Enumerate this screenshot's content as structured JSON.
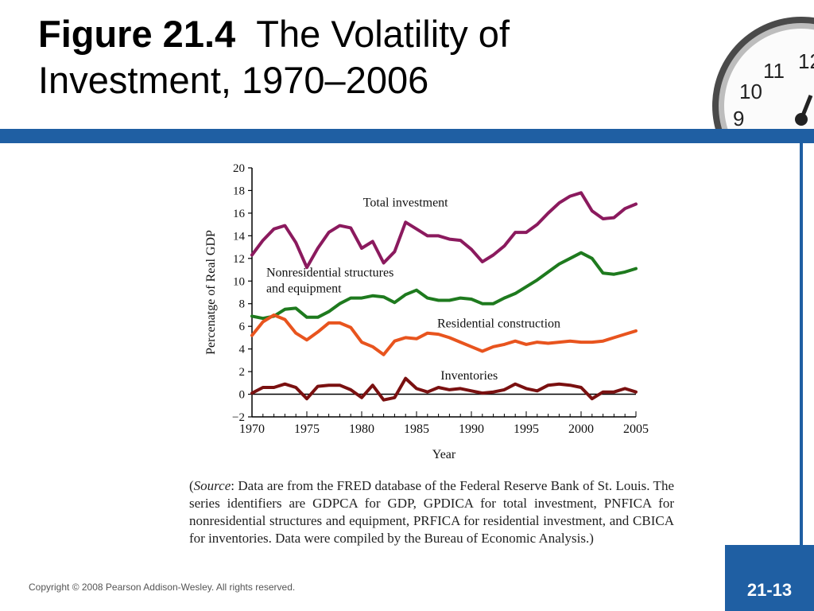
{
  "title": {
    "bold": "Figure 21.4",
    "regular": "The Volatility of Investment, 1970–2006"
  },
  "source": {
    "open": "(",
    "label": "Source",
    "text": ": Data are from the FRED database of the Federal Reserve Bank of St. Louis. The series identifiers are GDPCA for GDP, GPDICA for total invest­ment, PNFICA for nonresidential structures and equipment, PRFICA for res­idential investment, and CBICA for inventories. Data were compiled by the Bureau of Economic Analysis.)"
  },
  "copyright": "Copyright © 2008 Pearson Addison-Wesley. All rights reserved.",
  "page_number": "21-13",
  "clock_numbers": [
    "12",
    "11",
    "10",
    "9"
  ],
  "colors": {
    "band": "#1f5fa3",
    "total": "#8b1a5e",
    "nonres": "#1e7a1e",
    "residential": "#e8541e",
    "inventories": "#7a1010"
  },
  "chart_data": {
    "type": "line",
    "xlabel": "Year",
    "ylabel": "Percenatge of Real GDP",
    "xlim": [
      1970,
      2005
    ],
    "ylim": [
      -2,
      20
    ],
    "x_ticks": [
      "1970",
      "1975",
      "1980",
      "1985",
      "1990",
      "1995",
      "2000",
      "2005"
    ],
    "y_ticks": [
      "20",
      "18",
      "16",
      "14",
      "12",
      "10",
      "8",
      "6",
      "4",
      "2",
      "0",
      "−2"
    ],
    "x": [
      1970,
      1971,
      1972,
      1973,
      1974,
      1975,
      1976,
      1977,
      1978,
      1979,
      1980,
      1981,
      1982,
      1983,
      1984,
      1985,
      1986,
      1987,
      1988,
      1989,
      1990,
      1991,
      1992,
      1993,
      1994,
      1995,
      1996,
      1997,
      1998,
      1999,
      2000,
      2001,
      2002,
      2003,
      2004,
      2005
    ],
    "series": [
      {
        "name": "Total investment",
        "color_key": "total",
        "values": [
          12.3,
          13.6,
          14.6,
          14.9,
          13.4,
          11.2,
          12.9,
          14.3,
          14.9,
          14.7,
          12.9,
          13.5,
          11.6,
          12.6,
          15.2,
          14.6,
          14.0,
          14.0,
          13.7,
          13.6,
          12.8,
          11.7,
          12.3,
          13.1,
          14.3,
          14.3,
          15.0,
          16.0,
          16.9,
          17.5,
          17.8,
          16.2,
          15.5,
          15.6,
          16.4,
          16.8
        ]
      },
      {
        "name": "Nonresidential structures and equipment",
        "color_key": "nonres",
        "values": [
          6.9,
          6.7,
          6.9,
          7.5,
          7.6,
          6.8,
          6.8,
          7.3,
          8.0,
          8.5,
          8.5,
          8.7,
          8.6,
          8.1,
          8.8,
          9.2,
          8.5,
          8.3,
          8.3,
          8.5,
          8.4,
          8.0,
          8.0,
          8.5,
          8.9,
          9.5,
          10.1,
          10.8,
          11.5,
          12.0,
          12.5,
          12.0,
          10.7,
          10.6,
          10.8,
          11.1
        ]
      },
      {
        "name": "Residential construction",
        "color_key": "residential",
        "values": [
          5.2,
          6.4,
          7.0,
          6.6,
          5.4,
          4.8,
          5.5,
          6.3,
          6.3,
          5.9,
          4.6,
          4.2,
          3.5,
          4.7,
          5.0,
          4.9,
          5.4,
          5.3,
          5.0,
          4.6,
          4.2,
          3.8,
          4.2,
          4.4,
          4.7,
          4.4,
          4.6,
          4.5,
          4.6,
          4.7,
          4.6,
          4.6,
          4.7,
          5.0,
          5.3,
          5.6
        ]
      },
      {
        "name": "Inventories",
        "color_key": "inventories",
        "values": [
          0.1,
          0.6,
          0.6,
          0.9,
          0.6,
          -0.4,
          0.7,
          0.8,
          0.8,
          0.4,
          -0.3,
          0.8,
          -0.5,
          -0.3,
          1.4,
          0.5,
          0.2,
          0.6,
          0.4,
          0.5,
          0.3,
          0.1,
          0.2,
          0.4,
          0.9,
          0.5,
          0.3,
          0.8,
          0.9,
          0.8,
          0.6,
          -0.4,
          0.2,
          0.2,
          0.5,
          0.2
        ]
      }
    ],
    "annotations": [
      {
        "lines": [
          "Total investment"
        ],
        "x": 1984,
        "y": 16.6,
        "anchor": "middle"
      },
      {
        "lines": [
          "Nonresidential structures",
          "and equipment"
        ],
        "x": 1971.3,
        "y": 10.4,
        "anchor": "start"
      },
      {
        "lines": [
          "Residential construction"
        ],
        "x": 1992.5,
        "y": 5.9,
        "anchor": "middle"
      },
      {
        "lines": [
          "Inventories"
        ],
        "x": 1989.8,
        "y": 1.3,
        "anchor": "middle"
      }
    ]
  }
}
